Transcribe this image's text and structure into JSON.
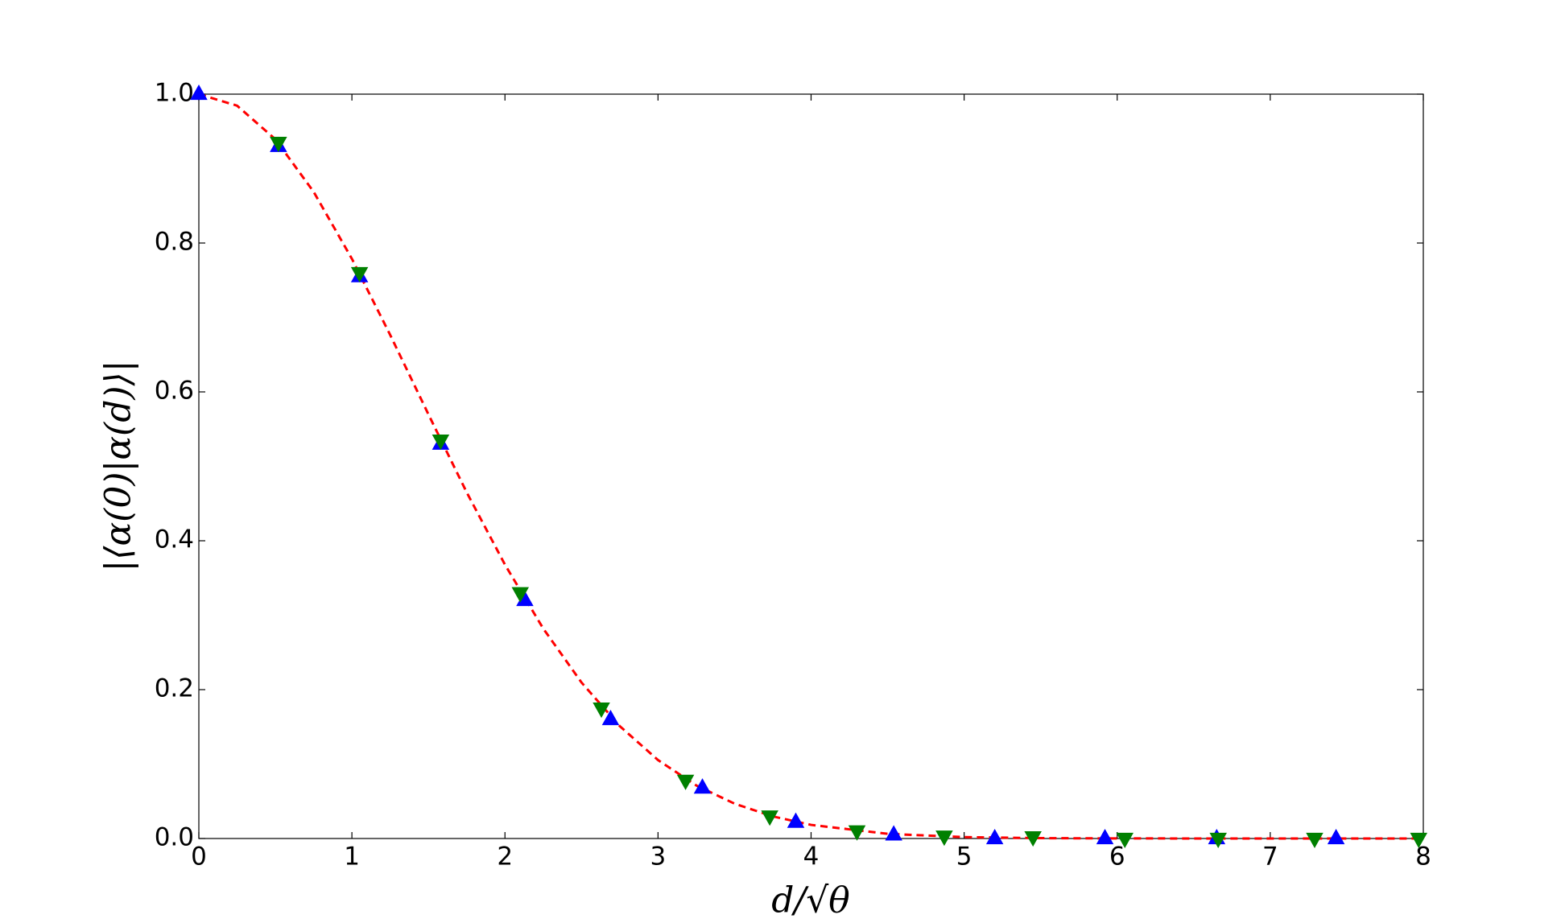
{
  "chart_data": {
    "type": "scatter",
    "xlabel": "d/√θ",
    "ylabel": "|⟨α(0)|α(d)⟩|",
    "xlim": [
      0,
      8
    ],
    "ylim": [
      0,
      1
    ],
    "xticks": [
      0,
      1,
      2,
      3,
      4,
      5,
      6,
      7,
      8
    ],
    "yticks": [
      {
        "value": 0,
        "label": "0.0"
      },
      0.2,
      0.4,
      0.6,
      0.8,
      {
        "value": 1,
        "label": "1.0"
      }
    ],
    "grid": false,
    "series": [
      {
        "kind": "line",
        "color": "#ff0000",
        "dashed": true,
        "x": [
          0,
          0.25,
          0.5,
          0.75,
          1,
          1.25,
          1.5,
          1.75,
          2,
          2.25,
          2.5,
          2.75,
          3,
          3.25,
          3.5,
          3.75,
          4,
          4.5,
          5,
          5.5,
          6,
          7,
          8
        ],
        "values": [
          1,
          0.9845,
          0.9394,
          0.8688,
          0.7788,
          0.6766,
          0.5698,
          0.465,
          0.3679,
          0.2821,
          0.2096,
          0.151,
          0.1054,
          0.0713,
          0.0468,
          0.0297,
          0.0183,
          0.0063,
          0.0019,
          0.0005,
          0.0001,
          0,
          0
        ]
      },
      {
        "kind": "triangle-up",
        "color": "#0000ff",
        "x": [
          0,
          0.52,
          1.05,
          1.58,
          2.13,
          2.69,
          3.29,
          3.9,
          4.54,
          5.2,
          5.92,
          6.65,
          7.43
        ],
        "values": [
          1,
          0.93,
          0.755,
          0.53,
          0.32,
          0.16,
          0.068,
          0.022,
          0.005,
          0,
          0,
          0,
          0
        ]
      },
      {
        "kind": "triangle-down",
        "color": "#008000",
        "x": [
          0.52,
          1.05,
          1.58,
          2.1,
          2.63,
          3.18,
          3.73,
          4.3,
          4.87,
          5.45,
          6.05,
          6.66,
          7.29,
          7.97
        ],
        "values": [
          0.935,
          0.76,
          0.535,
          0.33,
          0.175,
          0.078,
          0.03,
          0.01,
          0.003,
          0.002,
          0,
          0,
          0,
          0
        ]
      }
    ]
  }
}
